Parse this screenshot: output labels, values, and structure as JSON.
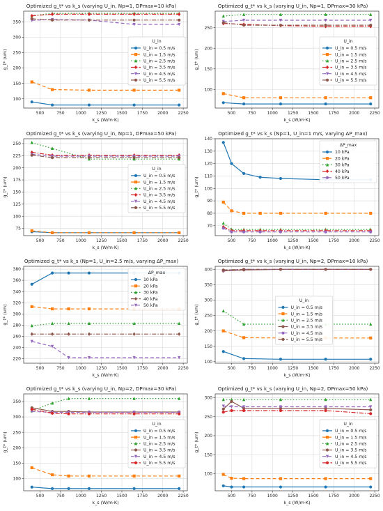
{
  "chart_data": [
    {
      "type": "line",
      "title": "Optimized g_t* vs k_s (varying U_in, Np=1, DPmax=10 kPa)",
      "xlabel": "k_s (W/m·K)",
      "ylabel": "g_t* (um)",
      "x": [
        400,
        650,
        1100,
        1650,
        2200
      ],
      "xlim": [
        300,
        2300
      ],
      "ylim": [
        70,
        385
      ],
      "xticks": [
        500,
        750,
        1000,
        1250,
        1500,
        1750,
        2000,
        2250
      ],
      "yticks": [
        100,
        150,
        200,
        250,
        300,
        350
      ],
      "grid": true,
      "legend": {
        "title": "U_in",
        "placement": "center-right"
      },
      "series": [
        {
          "name": "U_in = 0.5 m/s",
          "values": [
            90,
            80,
            80,
            80,
            80
          ],
          "color": "#1f77b4",
          "dash": "solid",
          "marker": "circle"
        },
        {
          "name": "U_in = 1.5 m/s",
          "values": [
            155,
            130,
            128,
            128,
            128
          ],
          "color": "#ff7f0e",
          "dash": "dashed",
          "marker": "square"
        },
        {
          "name": "U_in = 2.5 m/s",
          "values": [
            370,
            378,
            378,
            378,
            378
          ],
          "color": "#2ca02c",
          "dash": "dotted",
          "marker": "triangle"
        },
        {
          "name": "U_in = 3.5 m/s",
          "values": [
            370,
            375,
            375,
            375,
            375
          ],
          "color": "#d62728",
          "dash": "dashdot",
          "marker": "diamond"
        },
        {
          "name": "U_in = 4.5 m/s",
          "values": [
            355,
            358,
            356,
            342,
            342
          ],
          "color": "#9467bd",
          "dash": "dashed",
          "marker": "triangle-down"
        },
        {
          "name": "U_in = 5.5 m/s",
          "values": [
            360,
            356,
            356,
            356,
            356
          ],
          "color": "#8c564b",
          "dash": "dashdot",
          "marker": "circle"
        }
      ]
    },
    {
      "type": "line",
      "title": "Optimized g_t* vs k_s (varying U_in, Np=1, DPmax=30 kPa)",
      "xlabel": "k_s (W/m·K)",
      "ylabel": "g_t* (um)",
      "x": [
        400,
        650,
        1100,
        1650,
        2200
      ],
      "xlim": [
        300,
        2300
      ],
      "ylim": [
        55,
        290
      ],
      "xticks": [
        500,
        750,
        1000,
        1250,
        1500,
        1750,
        2000,
        2250
      ],
      "yticks": [
        100,
        150,
        200,
        250
      ],
      "grid": true,
      "legend": {
        "title": "U_in",
        "placement": "center-right"
      },
      "series": [
        {
          "name": "U_in = 0.5 m/s",
          "values": [
            68,
            65,
            65,
            65,
            65
          ],
          "color": "#1f77b4",
          "dash": "solid",
          "marker": "circle"
        },
        {
          "name": "U_in = 1.5 m/s",
          "values": [
            90,
            80,
            80,
            80,
            80
          ],
          "color": "#ff7f0e",
          "dash": "dashed",
          "marker": "square"
        },
        {
          "name": "U_in = 2.5 m/s",
          "values": [
            278,
            282,
            282,
            282,
            282
          ],
          "color": "#2ca02c",
          "dash": "dotted",
          "marker": "triangle"
        },
        {
          "name": "U_in = 3.5 m/s",
          "values": [
            260,
            258,
            255,
            253,
            253
          ],
          "color": "#d62728",
          "dash": "dashdot",
          "marker": "diamond"
        },
        {
          "name": "U_in = 4.5 m/s",
          "values": [
            265,
            268,
            268,
            268,
            268
          ],
          "color": "#9467bd",
          "dash": "dashed",
          "marker": "triangle-down"
        },
        {
          "name": "U_in = 5.5 m/s",
          "values": [
            262,
            256,
            256,
            256,
            256
          ],
          "color": "#8c564b",
          "dash": "dashdot",
          "marker": "circle"
        }
      ]
    },
    {
      "type": "line",
      "title": "Optimized g_t* vs k_s (varying U_in, Np=1, DPmax=50 kPa)",
      "xlabel": "k_s (W/m·K)",
      "ylabel": "g_t* (um)",
      "x": [
        400,
        650,
        1100,
        1650,
        2200
      ],
      "xlim": [
        300,
        2300
      ],
      "ylim": [
        60,
        260
      ],
      "xticks": [
        500,
        750,
        1000,
        1250,
        1500,
        1750,
        2000,
        2250
      ],
      "yticks": [
        75,
        100,
        125,
        150,
        175,
        200,
        225,
        250
      ],
      "grid": true,
      "legend": {
        "title": "U_in",
        "placement": "center-right"
      },
      "series": [
        {
          "name": "U_in = 0.5 m/s",
          "values": [
            68,
            66,
            66,
            66,
            66
          ],
          "color": "#1f77b4",
          "dash": "solid",
          "marker": "circle"
        },
        {
          "name": "U_in = 1.5 m/s",
          "values": [
            70,
            66,
            66,
            66,
            66
          ],
          "color": "#ff7f0e",
          "dash": "dashed",
          "marker": "square"
        },
        {
          "name": "U_in = 2.5 m/s",
          "values": [
            252,
            240,
            218,
            218,
            218
          ],
          "color": "#2ca02c",
          "dash": "dotted",
          "marker": "triangle"
        },
        {
          "name": "U_in = 3.5 m/s",
          "values": [
            232,
            226,
            226,
            226,
            226
          ],
          "color": "#d62728",
          "dash": "dashdot",
          "marker": "diamond"
        },
        {
          "name": "U_in = 4.5 m/s",
          "values": [
            228,
            224,
            224,
            224,
            224
          ],
          "color": "#9467bd",
          "dash": "dashed",
          "marker": "triangle-down"
        },
        {
          "name": "U_in = 5.5 m/s",
          "values": [
            226,
            221,
            221,
            221,
            221
          ],
          "color": "#8c564b",
          "dash": "dashdot",
          "marker": "circle"
        }
      ]
    },
    {
      "type": "line",
      "title": "Optimized g_t* vs k_s (Np=1, U_in=1 m/s, varying ΔP_max)",
      "xlabel": "k_s (W/m·K)",
      "ylabel": "g_t* (um)",
      "x": [
        400,
        500,
        650,
        850,
        1100,
        1650,
        2200
      ],
      "xlim": [
        300,
        2300
      ],
      "ylim": [
        62,
        140
      ],
      "xticks": [
        500,
        750,
        1000,
        1250,
        1500,
        1750,
        2000,
        2250
      ],
      "yticks": [
        70,
        80,
        90,
        100,
        110,
        120,
        130,
        140
      ],
      "grid": true,
      "legend": {
        "title": "ΔP_max",
        "placement": "upper-right"
      },
      "series": [
        {
          "name": "10 kPa",
          "values": [
            137,
            120,
            112,
            109,
            108,
            107,
            107
          ],
          "color": "#1f77b4",
          "dash": "solid",
          "marker": "circle"
        },
        {
          "name": "20 kPa",
          "values": [
            89,
            82,
            80,
            80,
            80,
            80,
            80
          ],
          "color": "#ff7f0e",
          "dash": "dashed",
          "marker": "square"
        },
        {
          "name": "30 kPa",
          "values": [
            72,
            67,
            67,
            67,
            67,
            67,
            67
          ],
          "color": "#2ca02c",
          "dash": "dotted",
          "marker": "triangle"
        },
        {
          "name": "40 kPa",
          "values": [
            69,
            66,
            66,
            66,
            66,
            66,
            66
          ],
          "color": "#d62728",
          "dash": "dashdot",
          "marker": "diamond"
        },
        {
          "name": "50 kPa",
          "values": [
            68,
            65,
            65,
            65,
            65,
            65,
            65
          ],
          "color": "#9467bd",
          "dash": "dashed",
          "marker": "circle"
        }
      ]
    },
    {
      "type": "line",
      "title": "Optimized g_t* vs k_s (Np=1, U_in=2.5 m/s, varying ΔP_max)",
      "xlabel": "k_s (W/m·K)",
      "ylabel": "g_t* (um)",
      "x": [
        400,
        650,
        850,
        1100,
        1650,
        2200
      ],
      "xlim": [
        300,
        2300
      ],
      "ylim": [
        212,
        385
      ],
      "xticks": [
        500,
        750,
        1000,
        1250,
        1500,
        1750,
        2000,
        2250
      ],
      "yticks": [
        220,
        240,
        260,
        280,
        300,
        320,
        340,
        360,
        380
      ],
      "grid": true,
      "legend": {
        "title": "ΔP_max",
        "placement": "upper-right"
      },
      "series": [
        {
          "name": "10 kPa",
          "values": [
            353,
            373,
            373,
            373,
            373,
            373
          ],
          "color": "#1f77b4",
          "dash": "solid",
          "marker": "circle"
        },
        {
          "name": "20 kPa",
          "values": [
            313,
            309,
            309,
            309,
            309,
            309
          ],
          "color": "#ff7f0e",
          "dash": "dashed",
          "marker": "square"
        },
        {
          "name": "30 kPa",
          "values": [
            279,
            283,
            283,
            283,
            283,
            283
          ],
          "color": "#2ca02c",
          "dash": "dotted",
          "marker": "triangle"
        },
        {
          "name": "40 kPa",
          "values": [
            264,
            264,
            264,
            264,
            264,
            264
          ],
          "color": "#8c564b",
          "dash": "dashdot",
          "marker": "diamond"
        },
        {
          "name": "50 kPa",
          "values": [
            251,
            242,
            222,
            222,
            222,
            222
          ],
          "color": "#9467bd",
          "dash": "dashed",
          "marker": "triangle-down"
        }
      ]
    },
    {
      "type": "line",
      "title": "Optimized g_t* vs k_s (varying U_in, Np=2, DPmax=10 kPa)",
      "xlabel": "k_s (W/m·K)",
      "ylabel": "g_t* (um)",
      "x": [
        400,
        650,
        1100,
        1650,
        2200
      ],
      "xlim": [
        300,
        2300
      ],
      "ylim": [
        95,
        410
      ],
      "xticks": [
        500,
        750,
        1000,
        1250,
        1500,
        1750,
        2000,
        2250
      ],
      "yticks": [
        100,
        150,
        200,
        250,
        300,
        350,
        400
      ],
      "grid": true,
      "legend": {
        "title": "U_in",
        "placement": "center"
      },
      "series": [
        {
          "name": "U_in = 0.5 m/s",
          "values": [
            133,
            110,
            108,
            108,
            108
          ],
          "color": "#1f77b4",
          "dash": "solid",
          "marker": "circle"
        },
        {
          "name": "U_in = 1.5 m/s",
          "values": [
            200,
            178,
            177,
            177,
            177
          ],
          "color": "#ff7f0e",
          "dash": "dashed",
          "marker": "square"
        },
        {
          "name": "U_in = 2.5 m/s",
          "values": [
            265,
            222,
            222,
            222,
            222
          ],
          "color": "#2ca02c",
          "dash": "dotted",
          "marker": "triangle"
        },
        {
          "name": "U_in = 3.5 m/s",
          "values": [
            395,
            398,
            400,
            400,
            400
          ],
          "color": "#8c564b",
          "dash": "solid",
          "marker": "circle"
        },
        {
          "name": "U_in = 4.5 m/s",
          "values": [
            397,
            400,
            400,
            400,
            400
          ],
          "color": "#9467bd",
          "dash": "dashed",
          "marker": "circle"
        },
        {
          "name": "U_in = 5.5 m/s",
          "values": [
            398,
            400,
            400,
            400,
            400
          ],
          "color": "#8c564b",
          "dash": "dashdot",
          "marker": "circle"
        }
      ]
    },
    {
      "type": "line",
      "title": "Optimized g_t* vs k_s (varying U_in, Np=2, DPmax=30 kPa)",
      "xlabel": "k_s (W/m·K)",
      "ylabel": "g_t* (um)",
      "x": [
        400,
        650,
        850,
        1100,
        1650,
        2200
      ],
      "xlim": [
        300,
        2300
      ],
      "ylim": [
        60,
        375
      ],
      "xticks": [
        500,
        750,
        1000,
        1250,
        1500,
        1750,
        2000,
        2250
      ],
      "yticks": [
        100,
        150,
        200,
        250,
        300,
        350
      ],
      "grid": true,
      "legend": {
        "title": "U_in",
        "placement": "center-right"
      },
      "series": [
        {
          "name": "U_in = 0.5 m/s",
          "values": [
            72,
            67,
            67,
            67,
            67,
            67
          ],
          "color": "#1f77b4",
          "dash": "solid",
          "marker": "circle"
        },
        {
          "name": "U_in = 1.5 m/s",
          "values": [
            135,
            112,
            108,
            108,
            108,
            108
          ],
          "color": "#ff7f0e",
          "dash": "dashed",
          "marker": "square"
        },
        {
          "name": "U_in = 2.5 m/s",
          "values": [
            320,
            345,
            360,
            360,
            360,
            360
          ],
          "color": "#2ca02c",
          "dash": "dotted",
          "marker": "triangle"
        },
        {
          "name": "U_in = 3.5 m/s",
          "values": [
            330,
            318,
            318,
            316,
            316,
            316
          ],
          "color": "#8c564b",
          "dash": "solid",
          "marker": "circle"
        },
        {
          "name": "U_in = 4.5 m/s",
          "values": [
            318,
            315,
            315,
            315,
            315,
            315
          ],
          "color": "#9467bd",
          "dash": "dashed",
          "marker": "triangle-down"
        },
        {
          "name": "U_in = 5.5 m/s",
          "values": [
            325,
            312,
            310,
            310,
            310,
            310
          ],
          "color": "#d62728",
          "dash": "dashdot",
          "marker": "circle"
        }
      ]
    },
    {
      "type": "line",
      "title": "Optimized g_t* vs k_s (varying U_in, Np=2, DPmax=50 kPa)",
      "xlabel": "k_s (W/m·K)",
      "ylabel": "g_t* (um)",
      "x": [
        400,
        500,
        650,
        1100,
        1650,
        2200
      ],
      "xlim": [
        300,
        2300
      ],
      "ylim": [
        55,
        310
      ],
      "xticks": [
        500,
        750,
        1000,
        1250,
        1500,
        1750,
        2000,
        2250
      ],
      "yticks": [
        100,
        150,
        200,
        250,
        300
      ],
      "grid": true,
      "legend": {
        "title": "U_in",
        "placement": "center-right"
      },
      "series": [
        {
          "name": "U_in = 0.5 m/s",
          "values": [
            68,
            65,
            65,
            65,
            65,
            65
          ],
          "color": "#1f77b4",
          "dash": "solid",
          "marker": "circle"
        },
        {
          "name": "U_in = 1.5 m/s",
          "values": [
            98,
            88,
            87,
            87,
            87,
            87
          ],
          "color": "#ff7f0e",
          "dash": "dashed",
          "marker": "square"
        },
        {
          "name": "U_in = 2.5 m/s",
          "values": [
            295,
            295,
            295,
            295,
            295,
            295
          ],
          "color": "#2ca02c",
          "dash": "dotted",
          "marker": "triangle"
        },
        {
          "name": "U_in = 3.5 m/s",
          "values": [
            270,
            290,
            272,
            272,
            272,
            268
          ],
          "color": "#8c564b",
          "dash": "solid",
          "marker": "circle"
        },
        {
          "name": "U_in = 4.5 m/s",
          "values": [
            278,
            276,
            276,
            276,
            276,
            276
          ],
          "color": "#9467bd",
          "dash": "dashed",
          "marker": "triangle-down"
        },
        {
          "name": "U_in = 5.5 m/s",
          "values": [
            262,
            266,
            266,
            266,
            266,
            258
          ],
          "color": "#d62728",
          "dash": "dashdot",
          "marker": "circle"
        }
      ]
    }
  ]
}
